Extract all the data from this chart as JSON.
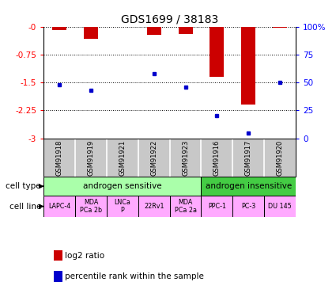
{
  "title": "GDS1699 / 38183",
  "samples": [
    "GSM91918",
    "GSM91919",
    "GSM91921",
    "GSM91922",
    "GSM91923",
    "GSM91916",
    "GSM91917",
    "GSM91920"
  ],
  "log2_ratios": [
    -0.1,
    -0.32,
    null,
    -0.22,
    -0.2,
    -1.35,
    -2.1,
    -0.02
  ],
  "percentile_ranks": [
    48,
    43,
    null,
    58,
    46,
    20,
    5,
    50
  ],
  "ylim_left": [
    -3,
    0
  ],
  "yticks_left": [
    0,
    -0.75,
    -1.5,
    -2.25,
    -3
  ],
  "ytick_labels_left": [
    "-0",
    "-0.75",
    "-1.5",
    "-2.25",
    "-3"
  ],
  "ylim_right": [
    0,
    100
  ],
  "yticks_right": [
    0,
    25,
    50,
    75,
    100
  ],
  "ytick_labels_right": [
    "0",
    "25",
    "50",
    "75",
    "100%"
  ],
  "cell_types": [
    {
      "label": "androgen sensitive",
      "start": 0,
      "end": 5,
      "color": "#aaffaa"
    },
    {
      "label": "androgen insensitive",
      "start": 5,
      "end": 8,
      "color": "#44cc44"
    }
  ],
  "cell_lines": [
    "LAPC-4",
    "MDA\nPCa 2b",
    "LNCa\nP",
    "22Rv1",
    "MDA\nPCa 2a",
    "PPC-1",
    "PC-3",
    "DU 145"
  ],
  "cell_line_color": "#ffaaff",
  "bar_color": "#cc0000",
  "dot_color": "#0000cc",
  "bar_width": 0.45,
  "legend_bar_label": "log2 ratio",
  "legend_dot_label": "percentile rank within the sample",
  "gsm_bg_color": "#c8c8c8"
}
